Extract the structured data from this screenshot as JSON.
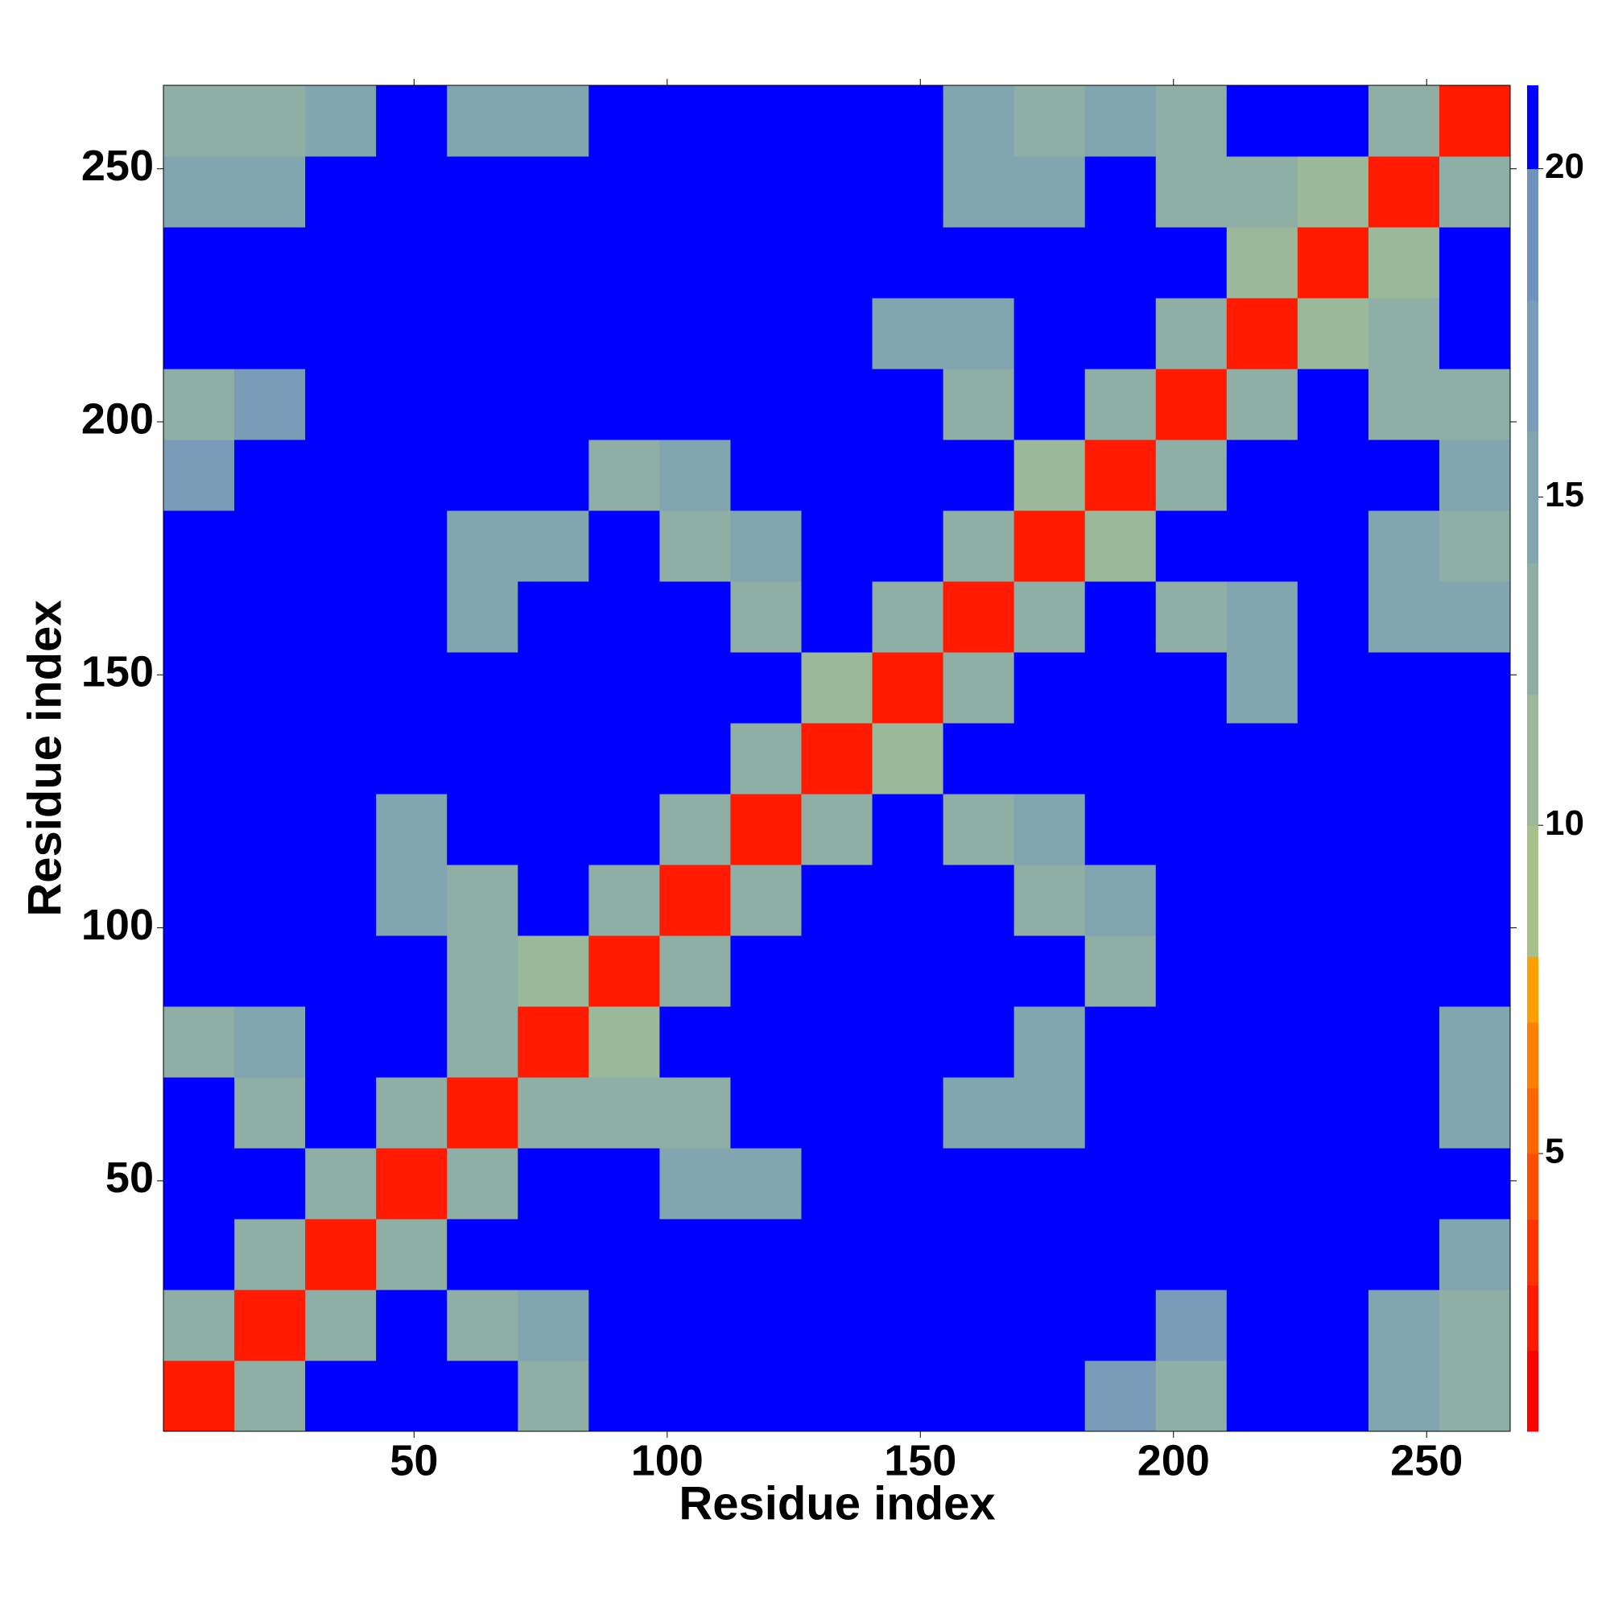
{
  "chart_data": {
    "type": "heatmap",
    "x_label": "Residue index",
    "y_label": "Residue index",
    "xlim": [
      0.5,
      266.5
    ],
    "ylim": [
      0.5,
      266.5
    ],
    "xticks": [
      50,
      100,
      150,
      200,
      250
    ],
    "yticks": [
      50,
      100,
      150,
      200,
      250
    ],
    "x_edges": [
      0.5,
      14.5,
      28.5,
      42.5,
      56.5,
      70.5,
      84.5,
      98.5,
      112.5,
      126.5,
      140.5,
      154.5,
      168.5,
      182.5,
      196.5,
      210.5,
      224.5,
      238.5,
      252.5,
      266.5
    ],
    "y_edges": [
      0.5,
      14.5,
      28.5,
      42.5,
      56.5,
      70.5,
      84.5,
      98.5,
      112.5,
      126.5,
      140.5,
      154.5,
      168.5,
      182.5,
      196.5,
      210.5,
      224.5,
      238.5,
      252.5,
      266.5
    ],
    "z": [
      [
        3,
        14,
        21,
        21,
        21,
        13,
        21,
        21,
        21,
        21,
        21,
        21,
        21,
        17,
        14,
        21,
        21,
        15,
        13
      ],
      [
        14,
        3,
        14,
        21,
        13,
        15,
        21,
        21,
        21,
        21,
        21,
        21,
        21,
        21,
        17,
        21,
        21,
        15,
        13
      ],
      [
        21,
        14,
        3,
        13,
        21,
        21,
        21,
        21,
        21,
        21,
        21,
        21,
        21,
        21,
        21,
        21,
        21,
        21,
        15
      ],
      [
        21,
        21,
        13,
        3,
        14,
        21,
        21,
        15,
        15,
        21,
        21,
        21,
        21,
        21,
        21,
        21,
        21,
        21,
        21
      ],
      [
        21,
        13,
        21,
        14,
        3,
        14,
        14,
        13,
        21,
        21,
        21,
        16,
        15,
        21,
        21,
        21,
        21,
        21,
        15
      ],
      [
        13,
        15,
        21,
        21,
        14,
        3,
        12,
        21,
        21,
        21,
        21,
        21,
        15,
        21,
        21,
        21,
        21,
        21,
        15
      ],
      [
        21,
        21,
        21,
        21,
        14,
        12,
        3,
        14,
        21,
        21,
        21,
        21,
        21,
        14,
        21,
        21,
        21,
        21,
        21
      ],
      [
        21,
        21,
        21,
        15,
        13,
        21,
        14,
        3,
        14,
        21,
        21,
        21,
        14,
        16,
        21,
        21,
        21,
        21,
        21
      ],
      [
        21,
        21,
        21,
        15,
        21,
        21,
        21,
        14,
        3,
        14,
        21,
        13,
        15,
        21,
        21,
        21,
        21,
        21,
        21
      ],
      [
        21,
        21,
        21,
        21,
        21,
        21,
        21,
        21,
        14,
        3,
        12,
        21,
        21,
        21,
        21,
        21,
        21,
        21,
        21
      ],
      [
        21,
        21,
        21,
        21,
        21,
        21,
        21,
        21,
        21,
        12,
        3,
        14,
        21,
        21,
        21,
        16,
        21,
        21,
        21
      ],
      [
        21,
        21,
        21,
        21,
        16,
        21,
        21,
        21,
        13,
        21,
        14,
        3,
        14,
        21,
        13,
        15,
        21,
        16,
        16
      ],
      [
        21,
        21,
        21,
        21,
        15,
        15,
        21,
        14,
        15,
        21,
        21,
        14,
        3,
        12,
        21,
        21,
        21,
        15,
        14
      ],
      [
        17,
        21,
        21,
        21,
        21,
        21,
        14,
        16,
        21,
        21,
        21,
        21,
        12,
        3,
        14,
        21,
        21,
        21,
        15
      ],
      [
        14,
        17,
        21,
        21,
        21,
        21,
        21,
        21,
        21,
        21,
        21,
        13,
        21,
        14,
        3,
        14,
        21,
        13,
        14
      ],
      [
        21,
        21,
        21,
        21,
        21,
        21,
        21,
        21,
        21,
        21,
        16,
        15,
        21,
        21,
        14,
        3,
        12,
        14,
        21
      ],
      [
        21,
        21,
        21,
        21,
        21,
        21,
        21,
        21,
        21,
        21,
        21,
        21,
        21,
        21,
        21,
        12,
        3,
        12,
        21
      ],
      [
        15,
        15,
        21,
        21,
        21,
        21,
        21,
        21,
        21,
        21,
        21,
        16,
        15,
        21,
        13,
        14,
        12,
        3,
        14
      ],
      [
        13,
        13,
        15,
        21,
        15,
        15,
        21,
        21,
        21,
        21,
        21,
        16,
        14,
        15,
        14,
        21,
        21,
        14,
        3
      ]
    ],
    "zlim": [
      0.77,
      21.27
    ],
    "zticks": [
      5,
      10,
      15,
      20
    ],
    "color_levels": [
      {
        "to": 2,
        "color": "#ff0000"
      },
      {
        "to": 3,
        "color": "#ff1a00"
      },
      {
        "to": 4,
        "color": "#ff3300"
      },
      {
        "to": 5,
        "color": "#ff4d00"
      },
      {
        "to": 6,
        "color": "#ff6600"
      },
      {
        "to": 7,
        "color": "#ff8000"
      },
      {
        "to": 8,
        "color": "#ffa000"
      },
      {
        "to": 10,
        "color": "#a8c08c"
      },
      {
        "to": 12,
        "color": "#9cb89a"
      },
      {
        "to": 14,
        "color": "#8eaea6"
      },
      {
        "to": 16,
        "color": "#82a6b0"
      },
      {
        "to": 18,
        "color": "#7a9cb8"
      },
      {
        "to": 20,
        "color": "#6e92bc"
      },
      {
        "to": 21.27,
        "color": "#0000ff"
      }
    ]
  }
}
